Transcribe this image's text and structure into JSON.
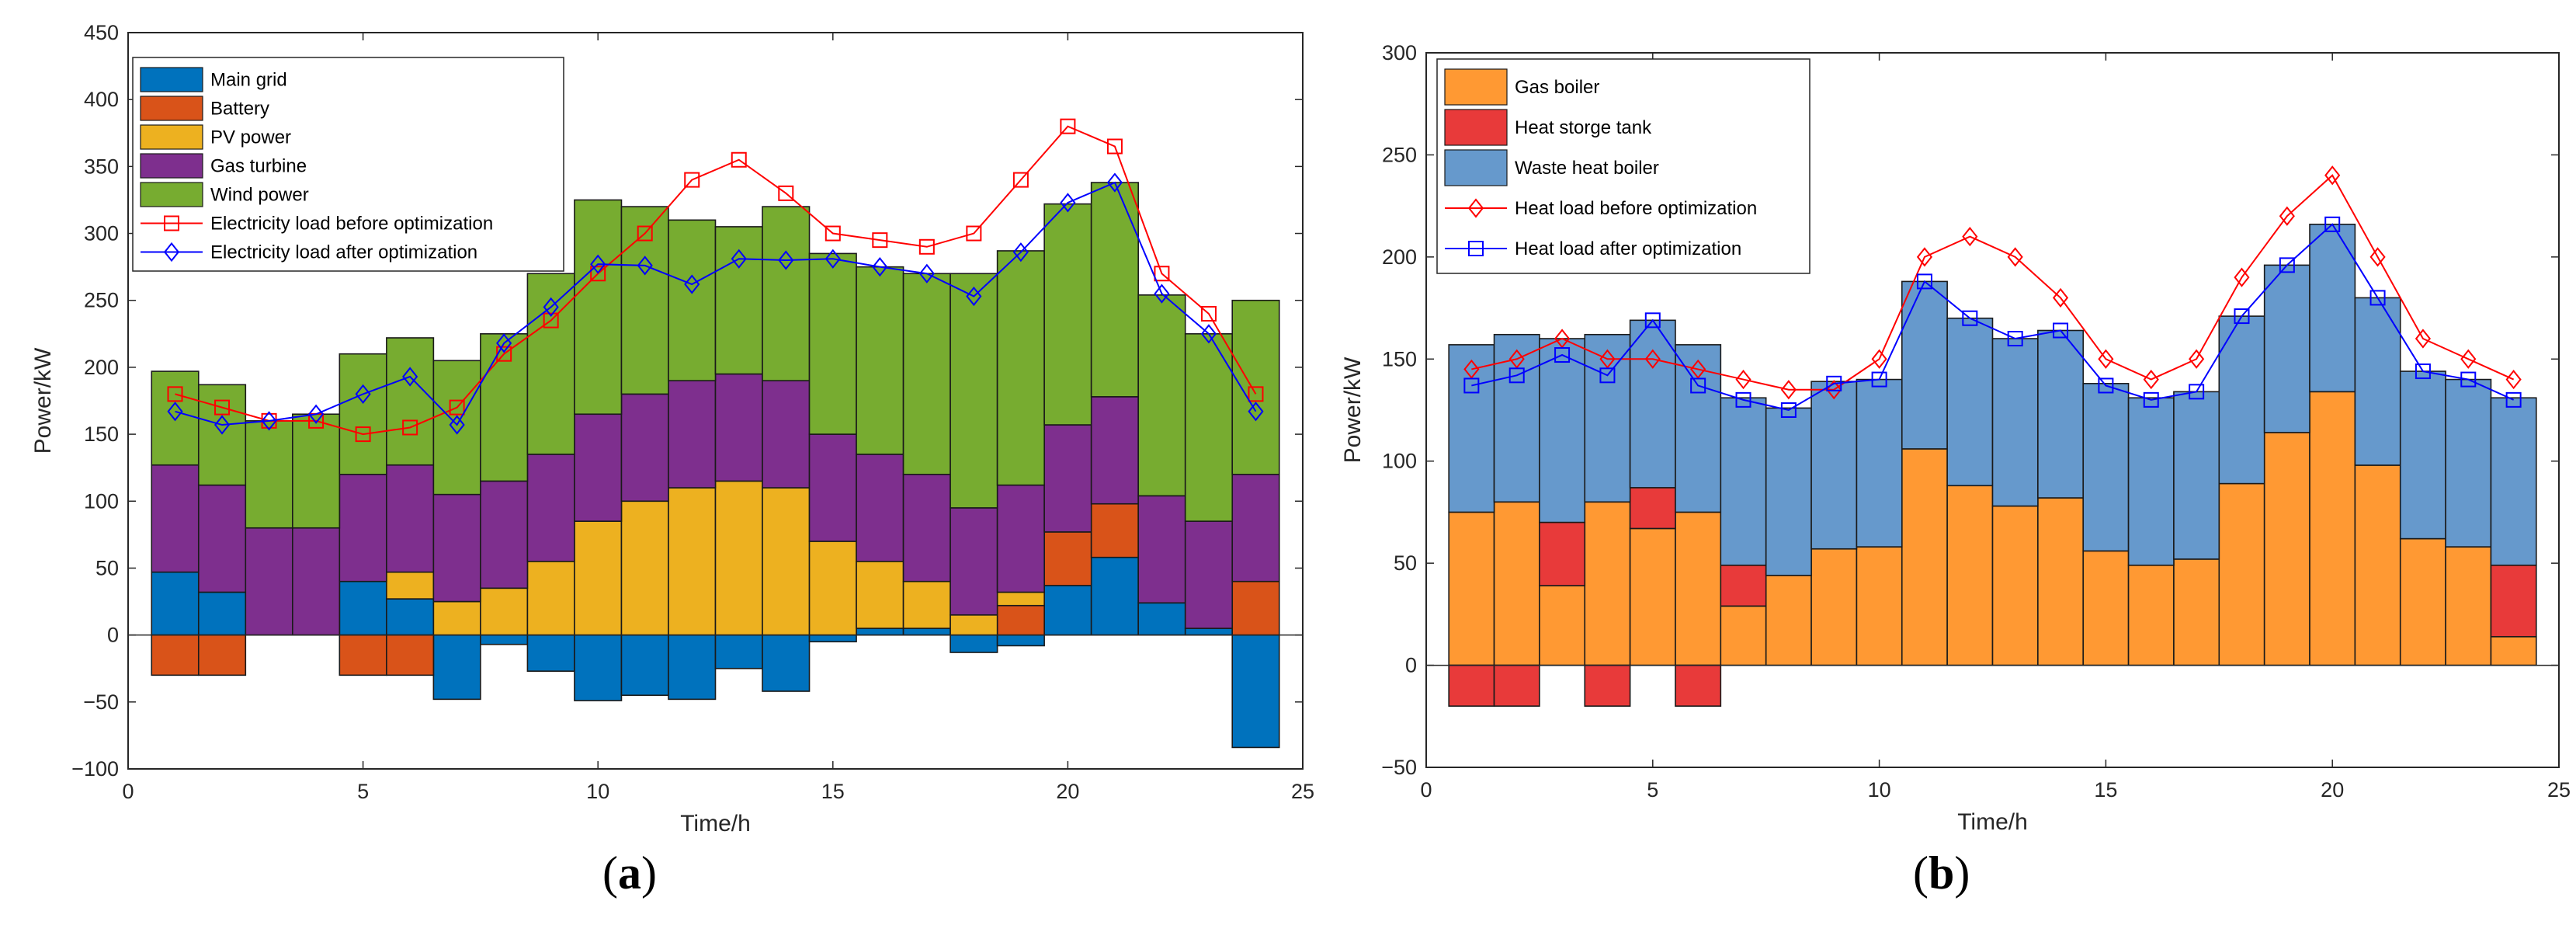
{
  "chart_data": [
    {
      "type": "bar",
      "panel": "a",
      "caption": "a",
      "xlabel": "Time/h",
      "ylabel": "Power/kW",
      "xlim": [
        0,
        25
      ],
      "ylim": [
        -100,
        450
      ],
      "xticks": [
        0,
        5,
        10,
        15,
        20,
        25
      ],
      "yticks": [
        -100,
        -50,
        0,
        50,
        100,
        150,
        200,
        250,
        300,
        350,
        400,
        450
      ],
      "x": [
        1,
        2,
        3,
        4,
        5,
        6,
        7,
        8,
        9,
        10,
        11,
        12,
        13,
        14,
        15,
        16,
        17,
        18,
        19,
        20,
        21,
        22,
        23,
        24
      ],
      "legend_position": "top-left",
      "stacked_series": [
        {
          "name": "Main grid",
          "color": "#0072bd",
          "values": [
            47,
            32,
            0,
            0,
            40,
            27,
            -48,
            -7,
            -27,
            -49,
            -45,
            -48,
            -25,
            -42,
            -5,
            5,
            5,
            -13,
            -8,
            37,
            58,
            24,
            5,
            -84
          ]
        },
        {
          "name": "Battery",
          "color": "#d95319",
          "values": [
            -30,
            -30,
            0,
            0,
            -30,
            -30,
            0,
            0,
            0,
            0,
            0,
            0,
            0,
            0,
            0,
            0,
            0,
            0,
            22,
            40,
            40,
            0,
            0,
            40
          ]
        },
        {
          "name": "PV power",
          "color": "#edb120",
          "values": [
            0,
            0,
            0,
            0,
            0,
            20,
            25,
            35,
            55,
            85,
            100,
            110,
            115,
            110,
            70,
            50,
            35,
            15,
            10,
            0,
            0,
            0,
            0,
            0
          ]
        },
        {
          "name": "Gas turbine",
          "color": "#7e2f8e",
          "values": [
            80,
            80,
            80,
            80,
            80,
            80,
            80,
            80,
            80,
            80,
            80,
            80,
            80,
            80,
            80,
            80,
            80,
            80,
            80,
            80,
            80,
            80,
            80,
            80
          ]
        },
        {
          "name": "Wind power",
          "color": "#77ac30",
          "values": [
            70,
            75,
            80,
            85,
            90,
            95,
            100,
            110,
            135,
            160,
            140,
            120,
            110,
            130,
            135,
            140,
            150,
            175,
            175,
            165,
            160,
            150,
            140,
            130
          ]
        }
      ],
      "line_series": [
        {
          "name": "Electricity load  before optimization",
          "color": "#ff0000",
          "marker": "square",
          "values": [
            180,
            170,
            160,
            160,
            150,
            155,
            170,
            210,
            235,
            270,
            300,
            340,
            355,
            330,
            300,
            295,
            290,
            300,
            340,
            380,
            365,
            270,
            240,
            180
          ]
        },
        {
          "name": "Electricity load after optimization",
          "color": "#0000ff",
          "marker": "diamond",
          "values": [
            167,
            157,
            160,
            165,
            180,
            193,
            157,
            218,
            245,
            277,
            276,
            262,
            281,
            280,
            281,
            275,
            270,
            253,
            286,
            323,
            338,
            255,
            225,
            167
          ]
        }
      ]
    },
    {
      "type": "bar",
      "panel": "b",
      "caption": "b",
      "xlabel": "Time/h",
      "ylabel": "Power/kW",
      "xlim": [
        0,
        25
      ],
      "ylim": [
        -50,
        300
      ],
      "xticks": [
        0,
        5,
        10,
        15,
        20,
        25
      ],
      "yticks": [
        -50,
        0,
        50,
        100,
        150,
        200,
        250,
        300
      ],
      "x": [
        1,
        2,
        3,
        4,
        5,
        6,
        7,
        8,
        9,
        10,
        11,
        12,
        13,
        14,
        15,
        16,
        17,
        18,
        19,
        20,
        21,
        22,
        23,
        24
      ],
      "legend_position": "top-left",
      "stacked_series": [
        {
          "name": "Gas boiler",
          "color": "#ff9933",
          "values": [
            75,
            80,
            39,
            80,
            67,
            75,
            29,
            44,
            57,
            58,
            106,
            88,
            78,
            82,
            56,
            49,
            52,
            89,
            114,
            134,
            98,
            62,
            58,
            14
          ]
        },
        {
          "name": "Heat storge tank",
          "color": "#e83a3a",
          "values": [
            -20,
            -20,
            31,
            -20,
            20,
            -20,
            20,
            0,
            0,
            0,
            0,
            0,
            0,
            0,
            0,
            0,
            0,
            0,
            0,
            0,
            0,
            0,
            0,
            35
          ]
        },
        {
          "name": "Waste heat boiler",
          "color": "#6699cc",
          "values": [
            82,
            82,
            90,
            82,
            82,
            82,
            82,
            82,
            82,
            82,
            82,
            82,
            82,
            82,
            82,
            82,
            82,
            82,
            82,
            82,
            82,
            82,
            82,
            82
          ]
        }
      ],
      "line_series": [
        {
          "name": "Heat load before optimization",
          "color": "#ff0000",
          "marker": "diamond",
          "values": [
            145,
            150,
            160,
            150,
            150,
            145,
            140,
            135,
            135,
            150,
            200,
            210,
            200,
            180,
            150,
            140,
            150,
            190,
            220,
            240,
            200,
            160,
            150,
            140
          ]
        },
        {
          "name": "Heat load after optimization",
          "color": "#0000ff",
          "marker": "square",
          "values": [
            137,
            142,
            152,
            142,
            169,
            137,
            130,
            125,
            138,
            140,
            188,
            170,
            160,
            164,
            137,
            130,
            134,
            171,
            196,
            216,
            180,
            144,
            140,
            130
          ]
        }
      ]
    }
  ]
}
